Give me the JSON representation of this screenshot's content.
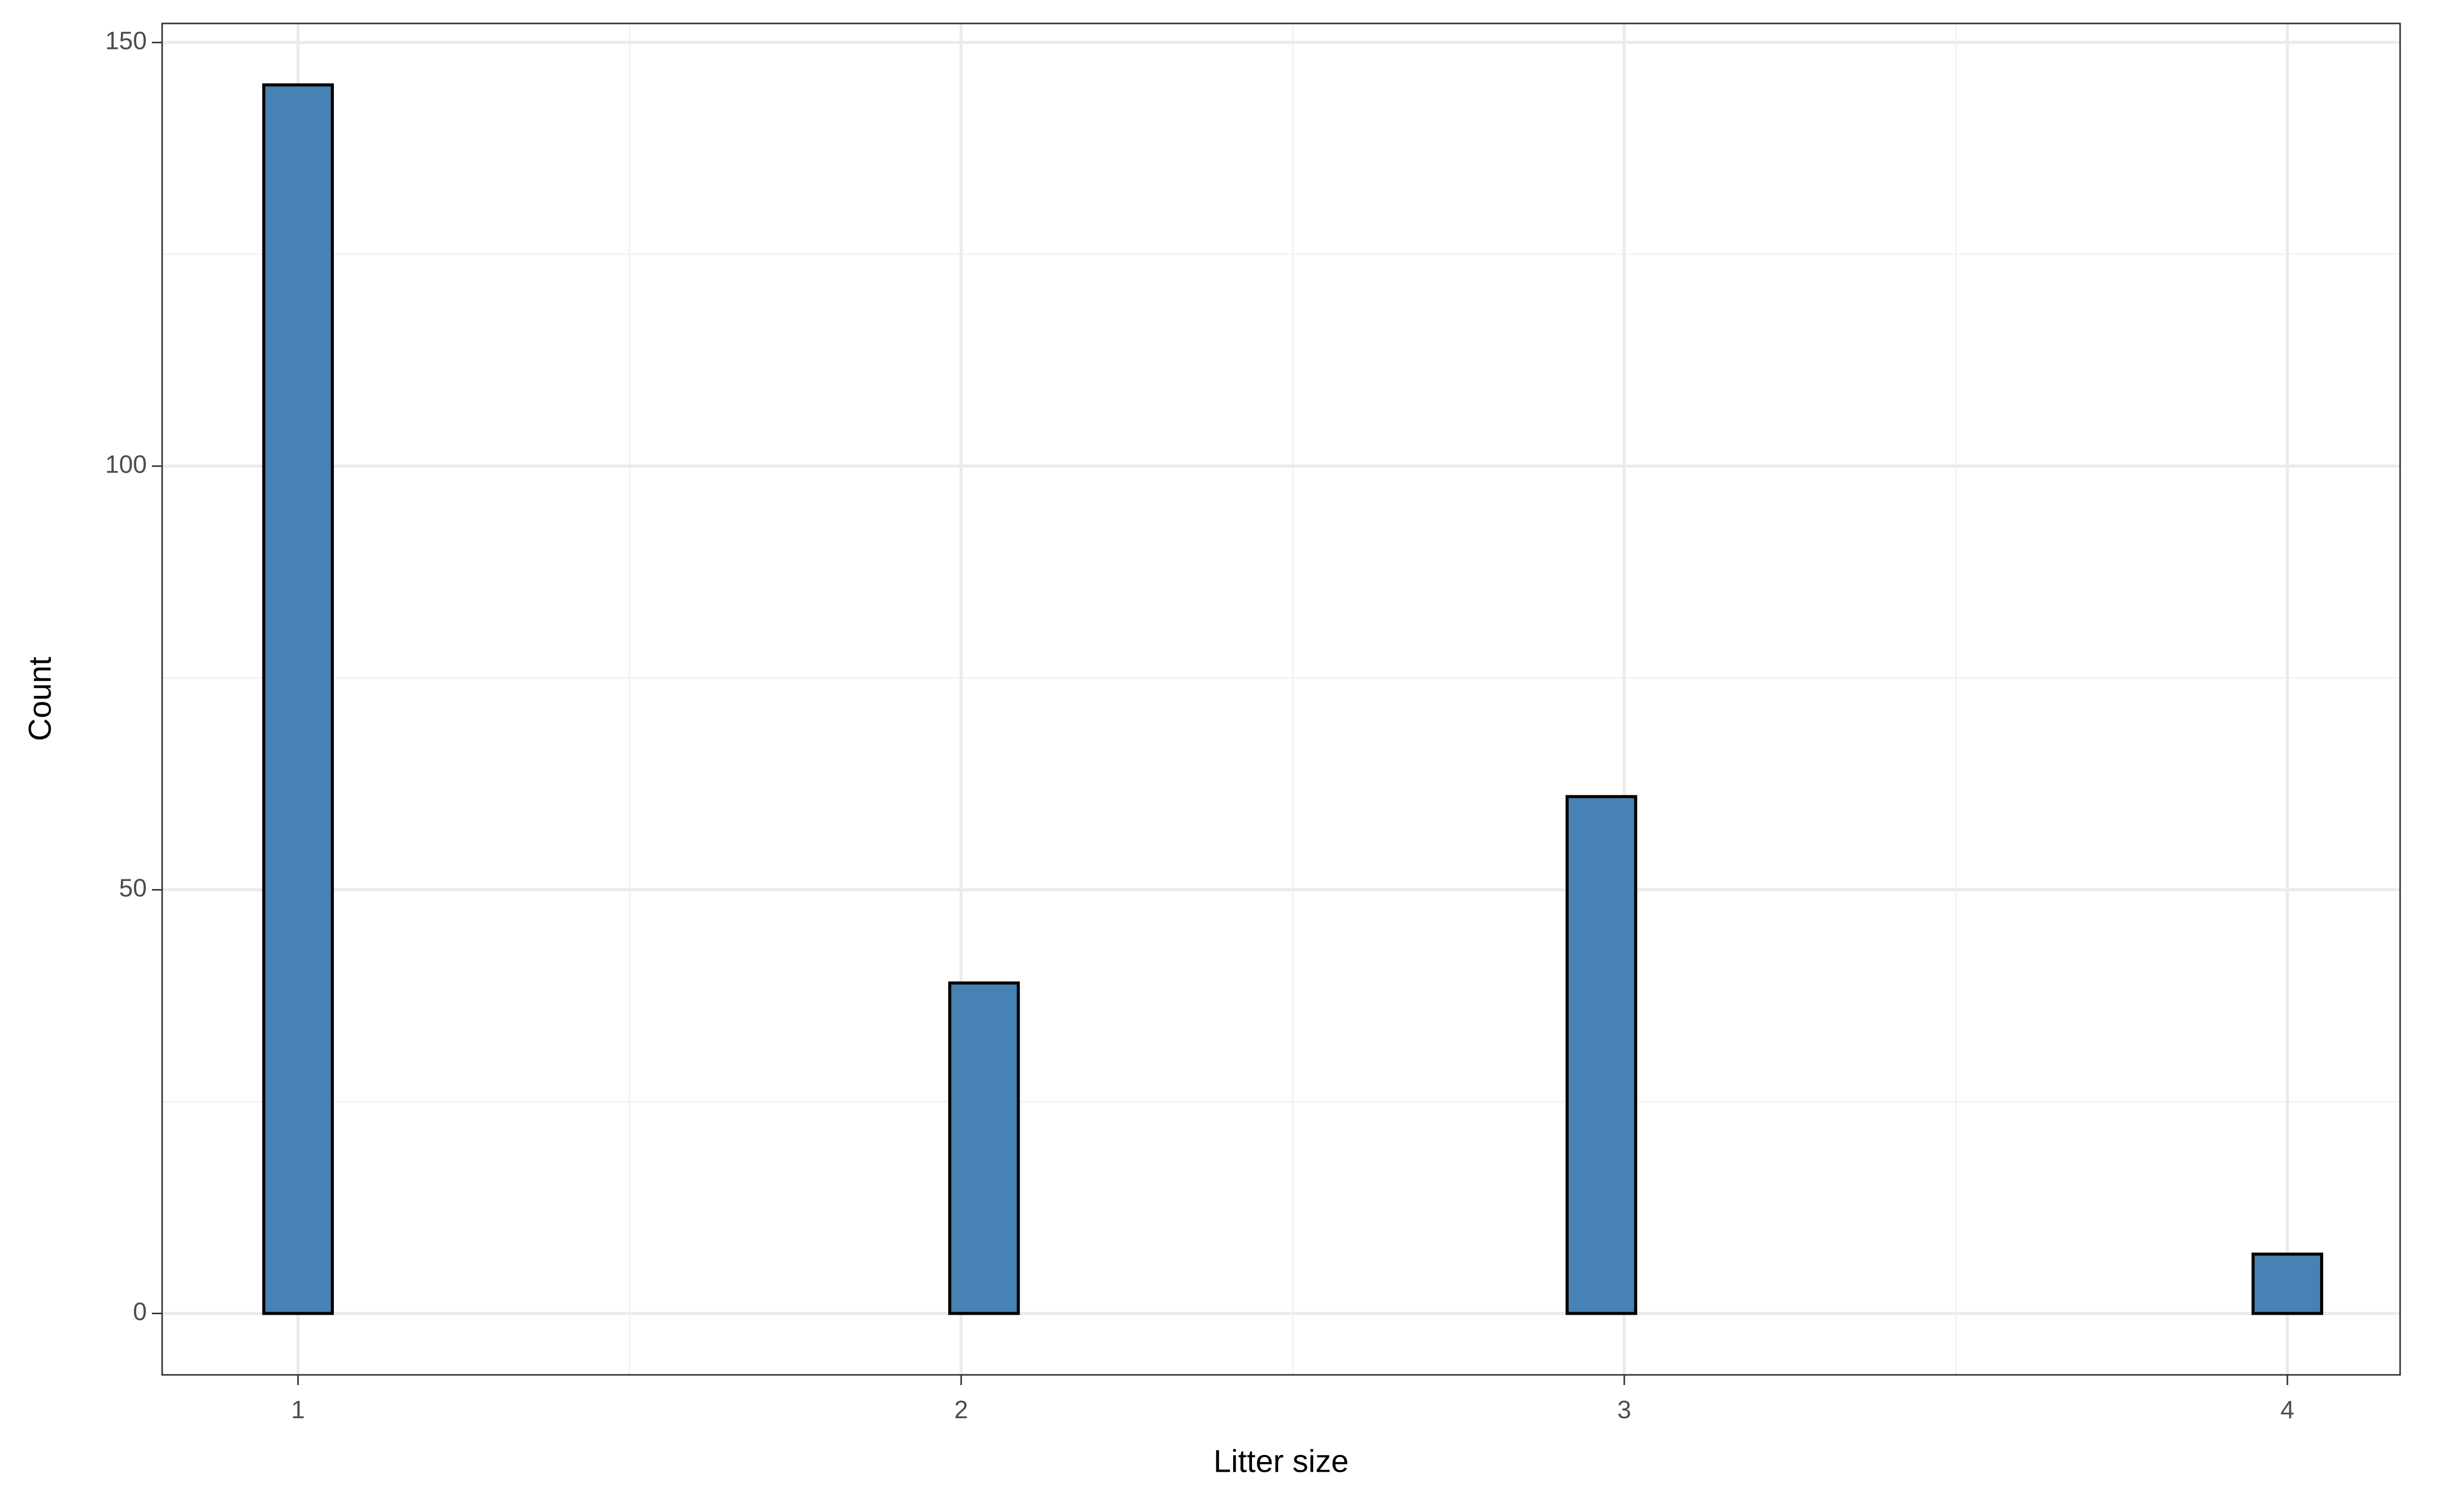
{
  "chart_data": {
    "type": "histogram",
    "x_label": "Litter size",
    "y_label": "Count",
    "bins": [
      0.9483,
      1.0517,
      1.1552,
      1.2586,
      1.3621,
      1.4655,
      1.569,
      1.6724,
      1.7759,
      1.8793,
      1.9828,
      2.0862,
      2.1897,
      2.2931,
      2.3966,
      2.5,
      2.6034,
      2.7069,
      2.8103,
      2.9138,
      3.0172,
      3.1207,
      3.2241,
      3.3276,
      3.431,
      3.5345,
      3.6379,
      3.7414,
      3.8448,
      3.9483,
      4.0517
    ],
    "counts": [
      145,
      0,
      0,
      0,
      0,
      0,
      0,
      0,
      0,
      0,
      39,
      0,
      0,
      0,
      0,
      0,
      0,
      0,
      0,
      61,
      0,
      0,
      0,
      0,
      0,
      0,
      0,
      0,
      0,
      7
    ],
    "color": "#4682b4",
    "edge_color": "#000000",
    "xlim": [
      0.795,
      4.17
    ],
    "xticks": [
      1,
      2,
      3,
      4
    ],
    "minor_xticks": [
      1.5,
      2.5,
      3.5
    ],
    "ylim": [
      -7.25,
      152.25
    ],
    "yticks": [
      0,
      50,
      100,
      150
    ],
    "minor_yticks": [
      25,
      75,
      125
    ],
    "grid": true
  }
}
